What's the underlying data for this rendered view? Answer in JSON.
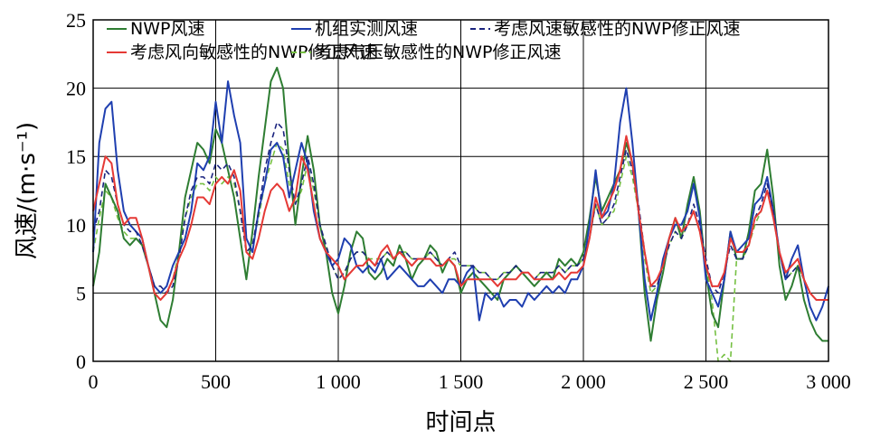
{
  "chart_data": {
    "type": "line",
    "title": "",
    "xlabel": "时间点",
    "ylabel": "风速/(m·s⁻¹)",
    "xlim": [
      0,
      3000
    ],
    "ylim": [
      0,
      25
    ],
    "x_ticks": [
      0,
      500,
      1000,
      1500,
      2000,
      2500,
      3000
    ],
    "x_tick_labels": [
      "0",
      "500",
      "1 000",
      "1 500",
      "2 000",
      "2 500",
      "3 000"
    ],
    "y_ticks": [
      0,
      5,
      10,
      15,
      20,
      25
    ],
    "y_tick_labels": [
      "0",
      "5",
      "10",
      "15",
      "20",
      "25"
    ],
    "grid": true,
    "legend_position": "top",
    "x": [
      0,
      25,
      50,
      75,
      100,
      125,
      150,
      175,
      200,
      225,
      250,
      275,
      300,
      325,
      350,
      375,
      400,
      425,
      450,
      475,
      500,
      525,
      550,
      575,
      600,
      625,
      650,
      675,
      700,
      725,
      750,
      775,
      800,
      825,
      850,
      875,
      900,
      925,
      950,
      975,
      1000,
      1025,
      1050,
      1075,
      1100,
      1125,
      1150,
      1175,
      1200,
      1225,
      1250,
      1275,
      1300,
      1325,
      1350,
      1375,
      1400,
      1425,
      1450,
      1475,
      1500,
      1525,
      1550,
      1575,
      1600,
      1625,
      1650,
      1675,
      1700,
      1725,
      1750,
      1775,
      1800,
      1825,
      1850,
      1875,
      1900,
      1925,
      1950,
      1975,
      2000,
      2025,
      2050,
      2075,
      2100,
      2125,
      2150,
      2175,
      2200,
      2225,
      2250,
      2275,
      2300,
      2325,
      2350,
      2375,
      2400,
      2425,
      2450,
      2475,
      2500,
      2525,
      2550,
      2575,
      2600,
      2625,
      2650,
      2675,
      2700,
      2725,
      2750,
      2775,
      2800,
      2825,
      2850,
      2875,
      2900,
      2925,
      2950,
      2975,
      3000
    ],
    "series": [
      {
        "name": "NWP风速",
        "color": "#2e7d32",
        "dash": "solid",
        "values": [
          5.5,
          8.0,
          13.0,
          12.0,
          11.0,
          9.0,
          8.5,
          9.0,
          8.5,
          7.0,
          5.0,
          3.0,
          2.5,
          4.5,
          8.0,
          12.0,
          14.0,
          16.0,
          15.5,
          14.5,
          17.0,
          16.0,
          14.0,
          12.0,
          9.0,
          6.0,
          9.5,
          13.5,
          17.0,
          20.5,
          21.5,
          20.0,
          14.5,
          10.0,
          13.5,
          16.5,
          14.0,
          10.0,
          8.0,
          5.0,
          3.5,
          5.5,
          8.0,
          9.5,
          9.0,
          6.5,
          6.0,
          6.5,
          7.5,
          7.0,
          8.5,
          7.5,
          6.0,
          7.0,
          7.5,
          8.5,
          8.0,
          6.5,
          7.5,
          7.0,
          5.0,
          6.0,
          6.5,
          6.0,
          5.5,
          5.0,
          4.5,
          6.0,
          6.5,
          7.0,
          6.5,
          6.0,
          5.5,
          6.0,
          6.5,
          6.0,
          7.5,
          7.0,
          7.5,
          7.0,
          8.0,
          10.5,
          13.5,
          11.0,
          12.0,
          13.0,
          14.0,
          16.0,
          14.5,
          11.0,
          5.0,
          1.5,
          4.5,
          6.5,
          9.0,
          10.5,
          9.0,
          11.5,
          13.5,
          11.0,
          6.5,
          3.5,
          2.5,
          6.0,
          9.5,
          7.5,
          7.5,
          9.5,
          12.5,
          13.0,
          15.5,
          12.0,
          7.0,
          4.5,
          5.5,
          7.0,
          4.5,
          3.0,
          2.0,
          1.5,
          1.5
        ]
      },
      {
        "name": "机组实测风速",
        "color": "#1f3fb0",
        "dash": "solid",
        "values": [
          8.0,
          16.0,
          18.5,
          19.0,
          14.0,
          11.0,
          10.0,
          9.5,
          9.0,
          7.0,
          5.5,
          5.0,
          5.5,
          7.0,
          8.0,
          9.0,
          11.0,
          14.5,
          14.0,
          15.0,
          19.0,
          16.0,
          20.5,
          18.0,
          16.0,
          9.0,
          8.0,
          11.0,
          13.0,
          15.5,
          16.0,
          15.0,
          12.0,
          14.0,
          16.0,
          14.5,
          11.0,
          9.0,
          8.0,
          7.0,
          7.5,
          9.0,
          8.5,
          7.0,
          6.5,
          7.0,
          6.5,
          7.5,
          6.0,
          6.5,
          7.0,
          6.5,
          6.0,
          5.5,
          5.5,
          6.0,
          5.5,
          5.0,
          6.0,
          6.0,
          5.5,
          6.5,
          7.0,
          3.0,
          5.0,
          4.5,
          5.0,
          4.0,
          4.5,
          4.5,
          4.0,
          5.0,
          4.5,
          5.0,
          5.5,
          5.0,
          5.5,
          5.0,
          6.0,
          6.0,
          7.0,
          10.0,
          14.0,
          10.5,
          11.0,
          13.0,
          17.5,
          20.0,
          16.0,
          11.0,
          6.0,
          3.0,
          5.0,
          7.5,
          9.0,
          10.0,
          10.0,
          11.0,
          13.0,
          10.5,
          6.0,
          5.0,
          4.0,
          6.0,
          9.5,
          8.0,
          8.5,
          9.0,
          11.5,
          12.0,
          13.5,
          11.0,
          8.0,
          6.0,
          7.5,
          8.5,
          6.0,
          4.0,
          3.0,
          4.0,
          5.5
        ]
      },
      {
        "name": "考虑风速敏感性的NWP修正风速",
        "color": "#1a237e",
        "dash": "dashed",
        "values": [
          9.5,
          11.0,
          14.0,
          13.5,
          11.5,
          10.0,
          9.5,
          9.5,
          8.5,
          7.0,
          5.5,
          5.5,
          5.0,
          5.5,
          7.5,
          10.5,
          12.5,
          13.5,
          13.5,
          13.0,
          14.5,
          14.0,
          14.5,
          13.5,
          11.0,
          8.0,
          8.5,
          11.0,
          14.0,
          16.0,
          17.5,
          17.0,
          14.0,
          11.5,
          13.0,
          15.0,
          13.0,
          10.0,
          8.5,
          7.0,
          6.0,
          6.5,
          7.5,
          8.0,
          8.0,
          7.5,
          7.0,
          7.5,
          8.0,
          7.5,
          8.0,
          8.0,
          7.5,
          7.5,
          7.5,
          8.0,
          7.5,
          7.0,
          7.5,
          8.0,
          7.0,
          7.0,
          7.0,
          6.5,
          6.5,
          6.0,
          6.0,
          6.5,
          6.5,
          7.0,
          6.5,
          6.5,
          6.0,
          6.5,
          6.5,
          6.5,
          7.0,
          6.5,
          7.0,
          7.0,
          7.5,
          9.0,
          11.5,
          10.0,
          10.5,
          11.5,
          13.5,
          15.5,
          14.0,
          11.5,
          8.0,
          5.5,
          5.5,
          7.0,
          8.5,
          9.5,
          9.0,
          10.0,
          11.5,
          10.0,
          7.5,
          5.5,
          5.0,
          6.5,
          8.5,
          7.5,
          7.5,
          8.5,
          10.5,
          11.5,
          13.0,
          11.0,
          8.0,
          6.0,
          6.5,
          7.0,
          6.0,
          5.0,
          4.5,
          4.5,
          4.5
        ]
      },
      {
        "name": "考虑风向敏感性的NWP修正风速",
        "color": "#e53935",
        "dash": "solid",
        "values": [
          11.0,
          13.0,
          15.0,
          14.5,
          11.5,
          10.0,
          10.5,
          10.5,
          9.0,
          7.0,
          5.0,
          4.5,
          5.0,
          6.0,
          7.5,
          8.5,
          10.0,
          12.0,
          12.0,
          11.5,
          13.0,
          13.5,
          13.0,
          14.0,
          12.5,
          8.0,
          7.5,
          9.0,
          11.0,
          12.5,
          13.0,
          12.5,
          11.0,
          12.0,
          15.0,
          14.0,
          11.5,
          9.0,
          8.0,
          7.5,
          7.0,
          6.0,
          6.5,
          7.0,
          7.0,
          7.5,
          7.0,
          8.0,
          8.5,
          7.5,
          8.0,
          7.5,
          7.0,
          7.5,
          7.5,
          7.5,
          7.0,
          7.0,
          7.5,
          7.0,
          5.5,
          6.0,
          6.0,
          6.0,
          6.0,
          6.0,
          5.5,
          6.0,
          6.0,
          6.0,
          6.5,
          6.5,
          6.0,
          6.0,
          6.0,
          6.0,
          6.5,
          6.0,
          6.5,
          6.5,
          7.0,
          9.0,
          12.0,
          10.5,
          11.5,
          12.5,
          14.0,
          16.5,
          14.5,
          11.0,
          8.0,
          5.5,
          6.0,
          7.0,
          9.0,
          10.5,
          9.5,
          10.0,
          11.0,
          9.5,
          7.0,
          5.5,
          5.5,
          6.5,
          9.0,
          8.0,
          8.0,
          8.5,
          10.5,
          11.0,
          12.5,
          10.5,
          8.0,
          6.5,
          7.0,
          7.5,
          6.0,
          5.0,
          4.5,
          4.5,
          4.5
        ]
      },
      {
        "name": "考虑气压敏感性的NWP修正风速",
        "color": "#76c043",
        "dash": "dashed",
        "values": [
          8.0,
          10.5,
          12.5,
          12.0,
          10.5,
          9.5,
          9.0,
          9.0,
          8.5,
          7.0,
          5.5,
          5.0,
          5.0,
          6.0,
          8.0,
          10.5,
          12.0,
          13.0,
          13.0,
          12.5,
          13.5,
          13.0,
          13.5,
          13.0,
          11.0,
          8.0,
          8.5,
          10.5,
          13.0,
          14.5,
          16.0,
          15.5,
          13.0,
          11.5,
          12.5,
          14.5,
          12.5,
          10.0,
          8.5,
          7.0,
          6.0,
          6.5,
          7.5,
          8.0,
          8.0,
          7.5,
          7.5,
          7.5,
          8.0,
          7.5,
          8.0,
          8.0,
          7.5,
          7.5,
          7.5,
          8.0,
          7.5,
          7.0,
          7.5,
          7.5,
          7.0,
          7.0,
          7.0,
          6.5,
          6.5,
          6.0,
          6.0,
          6.5,
          6.5,
          7.0,
          6.5,
          6.5,
          6.0,
          6.5,
          6.5,
          6.5,
          7.0,
          6.5,
          7.0,
          7.0,
          7.5,
          9.0,
          11.5,
          10.0,
          10.5,
          11.0,
          13.0,
          15.0,
          13.5,
          11.0,
          7.5,
          5.0,
          5.5,
          7.0,
          8.5,
          9.5,
          9.0,
          10.0,
          11.0,
          9.5,
          7.0,
          4.5,
          0.0,
          0.5,
          0.0,
          7.5,
          7.5,
          8.5,
          10.0,
          11.0,
          12.5,
          10.5,
          8.0,
          6.0,
          6.5,
          7.0,
          6.0,
          5.0,
          4.5,
          4.5,
          4.5
        ]
      }
    ]
  }
}
